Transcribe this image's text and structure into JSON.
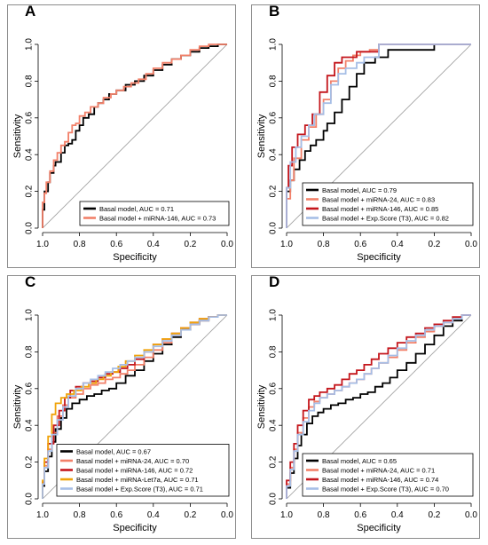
{
  "chart_data": [
    {
      "panel": "A",
      "type": "line",
      "xlabel": "Specificity",
      "ylabel": "Sensitivity",
      "xlim": [
        1.0,
        0.0
      ],
      "ylim": [
        0.0,
        1.0
      ],
      "x_ticks": [
        "1.0",
        "0.8",
        "0.6",
        "0.4",
        "0.2",
        "0.0"
      ],
      "y_ticks": [
        "0.0",
        "0.2",
        "0.4",
        "0.6",
        "0.8",
        "1.0"
      ],
      "diagonal_reference": true,
      "legend_position": "bottom-right",
      "series": [
        {
          "name": "Basal model, AUC = 0.71",
          "color": "#000000",
          "x": [
            1.0,
            1.0,
            0.99,
            0.99,
            0.97,
            0.96,
            0.94,
            0.93,
            0.9,
            0.88,
            0.86,
            0.84,
            0.82,
            0.8,
            0.78,
            0.75,
            0.72,
            0.7,
            0.67,
            0.64,
            0.6,
            0.55,
            0.5,
            0.45,
            0.4,
            0.35,
            0.3,
            0.25,
            0.2,
            0.15,
            0.1,
            0.05,
            0.0
          ],
          "y": [
            0.0,
            0.04,
            0.1,
            0.17,
            0.2,
            0.25,
            0.3,
            0.34,
            0.36,
            0.41,
            0.45,
            0.46,
            0.48,
            0.53,
            0.56,
            0.6,
            0.62,
            0.66,
            0.68,
            0.7,
            0.73,
            0.75,
            0.78,
            0.8,
            0.83,
            0.86,
            0.89,
            0.92,
            0.94,
            0.96,
            0.98,
            0.99,
            1.0
          ]
        },
        {
          "name": "Basal model + miRNA-146, AUC = 0.73",
          "color": "#F28069",
          "x": [
            1.0,
            1.0,
            0.99,
            0.98,
            0.96,
            0.94,
            0.92,
            0.9,
            0.88,
            0.86,
            0.84,
            0.82,
            0.8,
            0.77,
            0.74,
            0.7,
            0.67,
            0.63,
            0.6,
            0.56,
            0.52,
            0.48,
            0.44,
            0.4,
            0.35,
            0.3,
            0.25,
            0.2,
            0.15,
            0.1,
            0.05,
            0.0
          ],
          "y": [
            0.0,
            0.05,
            0.14,
            0.19,
            0.25,
            0.31,
            0.37,
            0.41,
            0.45,
            0.47,
            0.52,
            0.56,
            0.57,
            0.61,
            0.63,
            0.66,
            0.68,
            0.71,
            0.73,
            0.75,
            0.77,
            0.79,
            0.81,
            0.84,
            0.87,
            0.9,
            0.92,
            0.94,
            0.97,
            0.99,
            1.0,
            1.0
          ]
        }
      ]
    },
    {
      "panel": "B",
      "type": "line",
      "xlabel": "Specificity",
      "ylabel": "Sensitivity",
      "xlim": [
        1.0,
        0.0
      ],
      "ylim": [
        0.0,
        1.0
      ],
      "x_ticks": [
        "1.0",
        "0.8",
        "0.6",
        "0.4",
        "0.2",
        "0.0"
      ],
      "y_ticks": [
        "0.0",
        "0.2",
        "0.4",
        "0.6",
        "0.8",
        "1.0"
      ],
      "diagonal_reference": true,
      "legend_position": "bottom-right",
      "series": [
        {
          "name": "Basal model, AUC = 0.79",
          "color": "#000000",
          "x": [
            1.0,
            1.0,
            0.98,
            0.96,
            0.93,
            0.9,
            0.87,
            0.84,
            0.8,
            0.78,
            0.74,
            0.7,
            0.66,
            0.62,
            0.58,
            0.52,
            0.45,
            0.35,
            0.25,
            0.2,
            0.2,
            0.0
          ],
          "y": [
            0.0,
            0.08,
            0.2,
            0.26,
            0.32,
            0.37,
            0.42,
            0.45,
            0.48,
            0.53,
            0.57,
            0.63,
            0.7,
            0.77,
            0.84,
            0.9,
            0.93,
            0.97,
            0.97,
            0.97,
            1.0,
            1.0
          ]
        },
        {
          "name": "Basal model + miRNA-24, AUC = 0.83",
          "color": "#F28069",
          "x": [
            1.0,
            0.98,
            0.96,
            0.92,
            0.88,
            0.84,
            0.8,
            0.76,
            0.72,
            0.68,
            0.64,
            0.6,
            0.55,
            0.5,
            0.4,
            0.3,
            0.0
          ],
          "y": [
            0.0,
            0.16,
            0.26,
            0.38,
            0.48,
            0.55,
            0.62,
            0.7,
            0.8,
            0.87,
            0.91,
            0.94,
            0.96,
            0.97,
            1.0,
            1.0,
            1.0
          ]
        },
        {
          "name": "Basal model + miRNA-146, AUC = 0.85",
          "color": "#C4161C",
          "x": [
            1.0,
            0.99,
            0.97,
            0.94,
            0.9,
            0.86,
            0.82,
            0.78,
            0.74,
            0.7,
            0.66,
            0.62,
            0.58,
            0.5,
            0.45,
            0.3,
            0.0
          ],
          "y": [
            0.0,
            0.22,
            0.34,
            0.44,
            0.51,
            0.56,
            0.62,
            0.74,
            0.83,
            0.9,
            0.93,
            0.93,
            0.96,
            0.96,
            1.0,
            1.0,
            1.0
          ]
        },
        {
          "name": "Basal model + Exp.Score (T3), AUC = 0.82",
          "color": "#A6BEE6",
          "x": [
            1.0,
            1.0,
            0.98,
            0.95,
            0.92,
            0.88,
            0.85,
            0.8,
            0.76,
            0.72,
            0.68,
            0.62,
            0.58,
            0.5,
            0.45,
            0.35,
            0.0
          ],
          "y": [
            0.0,
            0.1,
            0.22,
            0.36,
            0.44,
            0.5,
            0.56,
            0.62,
            0.68,
            0.78,
            0.84,
            0.87,
            0.9,
            0.93,
            1.0,
            1.0,
            1.0
          ]
        }
      ]
    },
    {
      "panel": "C",
      "type": "line",
      "xlabel": "Specificity",
      "ylabel": "Sensitivity",
      "xlim": [
        1.0,
        0.0
      ],
      "ylim": [
        0.0,
        1.0
      ],
      "x_ticks": [
        "1.0",
        "0.8",
        "0.6",
        "0.4",
        "0.2",
        "0.0"
      ],
      "y_ticks": [
        "0.0",
        "0.2",
        "0.4",
        "0.6",
        "0.8",
        "1.0"
      ],
      "diagonal_reference": true,
      "legend_position": "bottom-right",
      "series": [
        {
          "name": "Basal model, AUC = 0.67",
          "color": "#000000",
          "x": [
            1.0,
            0.99,
            0.97,
            0.95,
            0.93,
            0.9,
            0.87,
            0.84,
            0.8,
            0.76,
            0.72,
            0.68,
            0.64,
            0.6,
            0.55,
            0.5,
            0.45,
            0.4,
            0.35,
            0.3,
            0.25,
            0.2,
            0.15,
            0.1,
            0.05,
            0.0
          ],
          "y": [
            0.0,
            0.07,
            0.15,
            0.23,
            0.31,
            0.38,
            0.44,
            0.49,
            0.52,
            0.54,
            0.56,
            0.57,
            0.59,
            0.6,
            0.63,
            0.67,
            0.7,
            0.75,
            0.79,
            0.84,
            0.88,
            0.92,
            0.95,
            0.97,
            0.99,
            1.0
          ]
        },
        {
          "name": "Basal model + miRNA-24, AUC = 0.70",
          "color": "#F28069",
          "x": [
            1.0,
            0.99,
            0.97,
            0.95,
            0.92,
            0.89,
            0.86,
            0.82,
            0.78,
            0.74,
            0.7,
            0.66,
            0.62,
            0.58,
            0.54,
            0.5,
            0.45,
            0.4,
            0.35,
            0.3,
            0.25,
            0.2,
            0.15,
            0.1,
            0.05,
            0.0
          ],
          "y": [
            0.0,
            0.08,
            0.18,
            0.27,
            0.36,
            0.45,
            0.51,
            0.55,
            0.57,
            0.6,
            0.62,
            0.63,
            0.65,
            0.66,
            0.68,
            0.7,
            0.73,
            0.77,
            0.81,
            0.85,
            0.89,
            0.93,
            0.95,
            0.97,
            0.99,
            1.0
          ]
        },
        {
          "name": "Basal model + miRNA-146, AUC = 0.72",
          "color": "#C4161C",
          "x": [
            1.0,
            0.99,
            0.97,
            0.94,
            0.91,
            0.88,
            0.85,
            0.82,
            0.78,
            0.74,
            0.7,
            0.66,
            0.62,
            0.58,
            0.54,
            0.5,
            0.45,
            0.4,
            0.35,
            0.3,
            0.25,
            0.2,
            0.15,
            0.1,
            0.05,
            0.0
          ],
          "y": [
            0.0,
            0.09,
            0.2,
            0.3,
            0.4,
            0.48,
            0.55,
            0.59,
            0.61,
            0.63,
            0.64,
            0.66,
            0.68,
            0.69,
            0.71,
            0.73,
            0.76,
            0.8,
            0.84,
            0.87,
            0.9,
            0.93,
            0.96,
            0.98,
            0.99,
            1.0
          ]
        },
        {
          "name": "Basal model + miRNA-Let7a, AUC = 0.71",
          "color": "#F0A30A",
          "x": [
            1.0,
            0.99,
            0.97,
            0.95,
            0.93,
            0.9,
            0.87,
            0.83,
            0.79,
            0.75,
            0.71,
            0.67,
            0.63,
            0.59,
            0.55,
            0.5,
            0.45,
            0.4,
            0.35,
            0.3,
            0.25,
            0.2,
            0.15,
            0.1,
            0.05,
            0.0
          ],
          "y": [
            0.0,
            0.1,
            0.22,
            0.34,
            0.46,
            0.52,
            0.55,
            0.57,
            0.59,
            0.61,
            0.63,
            0.65,
            0.67,
            0.69,
            0.72,
            0.75,
            0.78,
            0.81,
            0.84,
            0.87,
            0.9,
            0.93,
            0.96,
            0.98,
            0.99,
            1.0
          ]
        },
        {
          "name": "Basal model + Exp.Score (T3), AUC = 0.71",
          "color": "#A6BEE6",
          "x": [
            1.0,
            0.99,
            0.97,
            0.95,
            0.92,
            0.89,
            0.86,
            0.82,
            0.78,
            0.74,
            0.7,
            0.66,
            0.62,
            0.58,
            0.54,
            0.5,
            0.45,
            0.4,
            0.35,
            0.3,
            0.25,
            0.2,
            0.15,
            0.1,
            0.05,
            0.0
          ],
          "y": [
            0.0,
            0.08,
            0.17,
            0.26,
            0.35,
            0.43,
            0.5,
            0.56,
            0.6,
            0.63,
            0.65,
            0.67,
            0.69,
            0.71,
            0.73,
            0.75,
            0.77,
            0.8,
            0.83,
            0.86,
            0.89,
            0.92,
            0.95,
            0.97,
            0.99,
            1.0
          ]
        }
      ]
    },
    {
      "panel": "D",
      "type": "line",
      "xlabel": "Specificity",
      "ylabel": "Sensitivity",
      "xlim": [
        1.0,
        0.0
      ],
      "ylim": [
        0.0,
        1.0
      ],
      "x_ticks": [
        "1.0",
        "0.8",
        "0.6",
        "0.4",
        "0.2",
        "0.0"
      ],
      "y_ticks": [
        "0.0",
        "0.2",
        "0.4",
        "0.6",
        "0.8",
        "1.0"
      ],
      "diagonal_reference": true,
      "legend_position": "bottom-right",
      "series": [
        {
          "name": "Basal model, AUC = 0.65",
          "color": "#000000",
          "x": [
            1.0,
            0.98,
            0.96,
            0.94,
            0.92,
            0.89,
            0.86,
            0.83,
            0.8,
            0.76,
            0.72,
            0.68,
            0.64,
            0.6,
            0.56,
            0.52,
            0.48,
            0.44,
            0.4,
            0.35,
            0.3,
            0.25,
            0.2,
            0.15,
            0.1,
            0.05,
            0.0
          ],
          "y": [
            0.0,
            0.06,
            0.14,
            0.22,
            0.29,
            0.35,
            0.41,
            0.45,
            0.47,
            0.49,
            0.51,
            0.52,
            0.54,
            0.55,
            0.57,
            0.58,
            0.61,
            0.63,
            0.66,
            0.7,
            0.74,
            0.79,
            0.84,
            0.89,
            0.94,
            0.97,
            1.0
          ]
        },
        {
          "name": "Basal model + miRNA-24, AUC = 0.71",
          "color": "#F28069",
          "x": [
            1.0,
            0.98,
            0.96,
            0.94,
            0.91,
            0.88,
            0.85,
            0.82,
            0.78,
            0.74,
            0.7,
            0.66,
            0.62,
            0.58,
            0.54,
            0.5,
            0.45,
            0.4,
            0.35,
            0.3,
            0.25,
            0.2,
            0.15,
            0.1,
            0.05,
            0.0
          ],
          "y": [
            0.0,
            0.08,
            0.17,
            0.27,
            0.36,
            0.44,
            0.5,
            0.53,
            0.55,
            0.57,
            0.59,
            0.61,
            0.63,
            0.65,
            0.68,
            0.71,
            0.74,
            0.77,
            0.81,
            0.85,
            0.88,
            0.91,
            0.94,
            0.96,
            0.98,
            1.0
          ]
        },
        {
          "name": "Basal model + miRNA-146, AUC = 0.74",
          "color": "#C4161C",
          "x": [
            1.0,
            0.98,
            0.96,
            0.94,
            0.91,
            0.88,
            0.85,
            0.82,
            0.78,
            0.74,
            0.7,
            0.66,
            0.62,
            0.58,
            0.54,
            0.5,
            0.45,
            0.4,
            0.35,
            0.3,
            0.25,
            0.2,
            0.15,
            0.1,
            0.05,
            0.0
          ],
          "y": [
            0.0,
            0.1,
            0.2,
            0.3,
            0.4,
            0.48,
            0.54,
            0.56,
            0.58,
            0.6,
            0.62,
            0.65,
            0.68,
            0.7,
            0.73,
            0.76,
            0.79,
            0.82,
            0.85,
            0.88,
            0.9,
            0.93,
            0.95,
            0.97,
            0.99,
            1.0
          ]
        },
        {
          "name": "Basal model + Exp.Score (T3), AUC = 0.70",
          "color": "#A6BEE6",
          "x": [
            1.0,
            0.98,
            0.96,
            0.94,
            0.91,
            0.88,
            0.85,
            0.82,
            0.78,
            0.74,
            0.7,
            0.66,
            0.62,
            0.58,
            0.54,
            0.5,
            0.45,
            0.4,
            0.35,
            0.3,
            0.25,
            0.2,
            0.15,
            0.1,
            0.05,
            0.0
          ],
          "y": [
            0.0,
            0.07,
            0.16,
            0.26,
            0.35,
            0.42,
            0.48,
            0.52,
            0.55,
            0.57,
            0.59,
            0.61,
            0.63,
            0.65,
            0.68,
            0.71,
            0.74,
            0.78,
            0.82,
            0.86,
            0.89,
            0.92,
            0.94,
            0.96,
            0.98,
            1.0
          ]
        }
      ]
    }
  ]
}
